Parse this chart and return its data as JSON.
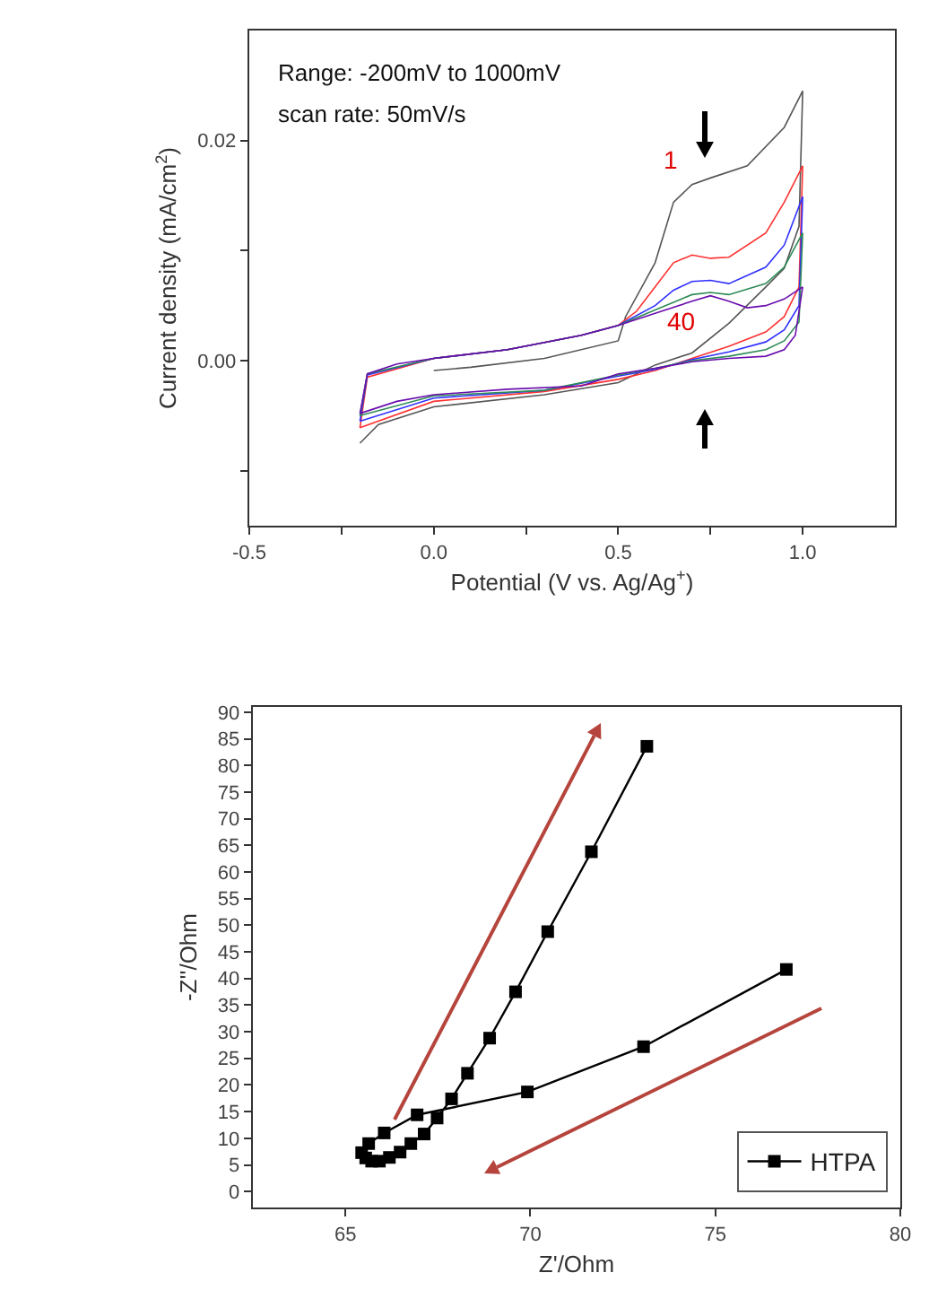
{
  "chart_data": [
    {
      "type": "line",
      "xlabel": "Potential (V vs. Ag/Ag$^{+}$)",
      "ylabel": "Current density (mA/cm$^{2}$)",
      "annotations": [
        "Range: -200mV to 1000mV",
        "scan rate: 50mV/s",
        {
          "text": "1",
          "x": 0.7,
          "y": 0.016
        },
        {
          "text": "40",
          "x": 0.75,
          "y": 0.0059
        }
      ],
      "xlim": [
        -0.5,
        1.25
      ],
      "xticks": [
        {
          "value": -0.5,
          "label": "-0.5"
        },
        {
          "value": -0.25,
          "label": null
        },
        {
          "value": 0,
          "label": "0.0"
        },
        {
          "value": 0.25,
          "label": null
        },
        {
          "value": 0.5,
          "label": "0.5"
        },
        {
          "value": 0.75,
          "label": null
        },
        {
          "value": 1,
          "label": "1.0"
        }
      ],
      "ylim": [
        -0.015,
        0.03
      ],
      "yticks": [
        {
          "value": -0.01,
          "label": null
        },
        {
          "value": 0,
          "label": "0.00"
        },
        {
          "value": 0.01,
          "label": null
        },
        {
          "value": 0.02,
          "label": "0.02"
        }
      ],
      "grid": false,
      "legend": false,
      "marker": "none",
      "line_style": "solid",
      "series": [
        {
          "color": "#555555",
          "x": [
            0,
            0.1,
            0.3,
            0.5,
            0.52,
            0.6,
            0.65,
            0.7,
            0.75,
            0.85,
            0.95,
            1
          ],
          "values": [
            -0.0009,
            -0.0006,
            0.0002,
            0.0018,
            0.004,
            0.0089,
            0.0144,
            0.016,
            0.0166,
            0.0177,
            0.0212,
            0.0245
          ]
        },
        {
          "color": "#555555",
          "x": [
            -0.2,
            -0.15,
            0,
            0.3,
            0.5,
            0.6,
            0.7,
            0.8,
            0.9,
            0.95,
            0.99,
            1
          ],
          "values": [
            -0.0075,
            -0.0058,
            -0.0042,
            -0.0031,
            -0.002,
            -0.0004,
            0.0007,
            0.0034,
            0.0067,
            0.0084,
            0.0122,
            0.0245
          ]
        },
        {
          "color": "#ff3030",
          "x": [
            -0.2,
            -0.18,
            0,
            0.2,
            0.4,
            0.5,
            0.55,
            0.6,
            0.65,
            0.7,
            0.75,
            0.8,
            0.9,
            0.95,
            1
          ],
          "values": [
            -0.0061,
            -0.0015,
            0.0002,
            0.001,
            0.0023,
            0.0032,
            0.0045,
            0.0067,
            0.0089,
            0.0096,
            0.0093,
            0.0094,
            0.0116,
            0.0144,
            0.0177
          ]
        },
        {
          "color": "#ff3030",
          "x": [
            -0.2,
            0,
            0.3,
            0.5,
            0.6,
            0.7,
            0.8,
            0.9,
            0.95,
            0.99,
            1
          ],
          "values": [
            -0.0061,
            -0.0037,
            -0.0028,
            -0.0017,
            -0.0009,
            0.0002,
            0.0013,
            0.0026,
            0.004,
            0.0067,
            0.0177
          ]
        },
        {
          "color": "#3030ff",
          "x": [
            -0.2,
            -0.18,
            0,
            0.2,
            0.4,
            0.5,
            0.6,
            0.65,
            0.7,
            0.75,
            0.8,
            0.9,
            0.95,
            1
          ],
          "values": [
            -0.0055,
            -0.0013,
            0.0002,
            0.001,
            0.0023,
            0.0032,
            0.005,
            0.0064,
            0.0072,
            0.0073,
            0.007,
            0.0085,
            0.0105,
            0.0149
          ]
        },
        {
          "color": "#3030ff",
          "x": [
            -0.2,
            0,
            0.3,
            0.5,
            0.6,
            0.7,
            0.8,
            0.9,
            0.95,
            0.99,
            1
          ],
          "values": [
            -0.0055,
            -0.0034,
            -0.0027,
            -0.0014,
            -0.0008,
            0.0001,
            0.0008,
            0.0017,
            0.0028,
            0.005,
            0.0149
          ]
        },
        {
          "color": "#2e8b57",
          "x": [
            -0.2,
            -0.18,
            0,
            0.2,
            0.4,
            0.5,
            0.6,
            0.7,
            0.75,
            0.8,
            0.9,
            0.95,
            1
          ],
          "values": [
            -0.005,
            -0.0012,
            0.0002,
            0.001,
            0.0023,
            0.0032,
            0.0046,
            0.006,
            0.0062,
            0.006,
            0.007,
            0.0085,
            0.0116
          ]
        },
        {
          "color": "#2e8b57",
          "x": [
            -0.2,
            0,
            0.3,
            0.5,
            0.6,
            0.7,
            0.8,
            0.9,
            0.95,
            0.99,
            1
          ],
          "values": [
            -0.005,
            -0.0032,
            -0.0027,
            -0.0013,
            -0.0007,
            0,
            0.0004,
            0.001,
            0.0018,
            0.0035,
            0.0116
          ]
        },
        {
          "color": "#6a0dad",
          "x": [
            -0.2,
            -0.18,
            -0.1,
            0,
            0.2,
            0.4,
            0.5,
            0.6,
            0.7,
            0.75,
            0.8,
            0.85,
            0.9,
            0.95,
            1
          ],
          "values": [
            -0.0048,
            -0.0012,
            -0.0003,
            0.0002,
            0.001,
            0.0023,
            0.0032,
            0.0043,
            0.0054,
            0.0059,
            0.0054,
            0.0048,
            0.005,
            0.0056,
            0.0067
          ]
        },
        {
          "color": "#6a0dad",
          "x": [
            -0.2,
            -0.1,
            0,
            0.2,
            0.4,
            0.5,
            0.6,
            0.7,
            0.8,
            0.9,
            0.95,
            0.98,
            1
          ],
          "values": [
            -0.0048,
            -0.0037,
            -0.0031,
            -0.0026,
            -0.0023,
            -0.0012,
            -0.0007,
            -0.0001,
            0.0002,
            0.0004,
            0.001,
            0.0023,
            0.0067
          ]
        }
      ]
    },
    {
      "type": "line",
      "xlabel": "Z'/Ohm",
      "ylabel": "-Z''/Ohm",
      "xlim": [
        62.5,
        80
      ],
      "xticks": [
        65,
        70,
        75,
        80
      ],
      "ylim": [
        -3,
        91
      ],
      "yticks": [
        0,
        5,
        10,
        15,
        20,
        25,
        30,
        35,
        40,
        45,
        50,
        55,
        60,
        65,
        70,
        75,
        80,
        85,
        90
      ],
      "grid": false,
      "legend": "bottom right",
      "marker": "square",
      "line_style": "solid",
      "series": [
        {
          "name": "HTPA",
          "color": "#000000",
          "x": [
            73.15,
            71.65,
            70.47,
            69.6,
            68.9,
            68.3,
            67.87,
            67.48,
            67.13,
            66.77,
            66.48,
            66.19,
            65.92,
            65.71,
            65.55,
            65.44,
            65.63,
            66.05,
            66.94,
            69.92,
            73.06,
            76.92
          ],
          "values": [
            83.6,
            63.8,
            48.8,
            37.5,
            28.8,
            22.2,
            17.4,
            13.8,
            10.8,
            9.0,
            7.4,
            6.4,
            5.7,
            5.7,
            6.3,
            7.3,
            9.0,
            11.0,
            14.4,
            18.7,
            27.2,
            41.7
          ]
        }
      ]
    }
  ]
}
